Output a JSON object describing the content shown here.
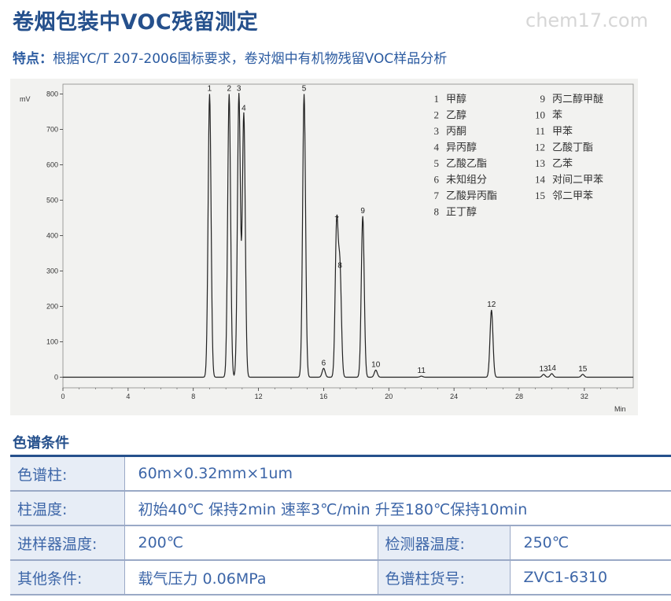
{
  "page": {
    "title": "卷烟包装中VOC残留测定",
    "watermark": "chem17.com",
    "subtitle_label": "特点：",
    "subtitle_text": "根据YC/T 207-2006国标要求，卷对烟中有机物残留VOC样品分析"
  },
  "chart_data": {
    "type": "line",
    "ylabel": "mV",
    "xlabel": "Min",
    "xlim": [
      0,
      35
    ],
    "ylim": [
      -30,
      810
    ],
    "x_ticks": [
      0,
      4,
      8,
      12,
      16,
      20,
      24,
      28,
      32
    ],
    "y_ticks": [
      0,
      100,
      200,
      300,
      400,
      500,
      600,
      700,
      800
    ],
    "grid": false,
    "legend_position": "top-right",
    "peaks": [
      {
        "label": "1",
        "time": 9.0,
        "height": 800
      },
      {
        "label": "2",
        "time": 10.2,
        "height": 800
      },
      {
        "label": "3",
        "time": 10.8,
        "height": 800
      },
      {
        "label": "4",
        "time": 11.1,
        "height": 745
      },
      {
        "label": "5",
        "time": 14.8,
        "height": 800
      },
      {
        "label": "6",
        "time": 16.0,
        "height": 25
      },
      {
        "label": "7",
        "time": 16.8,
        "height": 430
      },
      {
        "label": "8",
        "time": 17.0,
        "height": 300
      },
      {
        "label": "9",
        "time": 18.4,
        "height": 455
      },
      {
        "label": "10",
        "time": 19.2,
        "height": 20
      },
      {
        "label": "11",
        "time": 22.0,
        "height": 3
      },
      {
        "label": "12",
        "time": 26.3,
        "height": 190
      },
      {
        "label": "13",
        "time": 29.5,
        "height": 8
      },
      {
        "label": "14",
        "time": 30.0,
        "height": 10
      },
      {
        "label": "15",
        "time": 31.9,
        "height": 8
      }
    ],
    "legend": [
      {
        "no": "1",
        "name": "甲醇"
      },
      {
        "no": "2",
        "name": "乙醇"
      },
      {
        "no": "3",
        "name": "丙酮"
      },
      {
        "no": "4",
        "name": "异丙醇"
      },
      {
        "no": "5",
        "name": "乙酸乙酯"
      },
      {
        "no": "6",
        "name": "未知组分"
      },
      {
        "no": "7",
        "name": "乙酸异丙酯"
      },
      {
        "no": "8",
        "name": "正丁醇"
      },
      {
        "no": "9",
        "name": "丙二醇甲醚"
      },
      {
        "no": "10",
        "name": "苯"
      },
      {
        "no": "11",
        "name": "甲苯"
      },
      {
        "no": "12",
        "name": "乙酸丁酯"
      },
      {
        "no": "13",
        "name": "乙苯"
      },
      {
        "no": "14",
        "name": "对间二甲苯"
      },
      {
        "no": "15",
        "name": "邻二甲苯"
      }
    ]
  },
  "conditions": {
    "heading": "色谱条件",
    "column_label": "色谱柱:",
    "column_value": "60m×0.32mm×1um",
    "temp_label": "柱温度:",
    "temp_value": "初始40℃  保持2min  速率3℃/min  升至180℃保持10min",
    "inlet_label": "进样器温度:",
    "inlet_value": "200℃",
    "detector_label": "检测器温度:",
    "detector_value": "250℃",
    "other_label": "其他条件:",
    "other_value": "载气压力  0.06MPa",
    "partno_label": "色谱柱货号:",
    "partno_value": "ZVC1-6310"
  }
}
